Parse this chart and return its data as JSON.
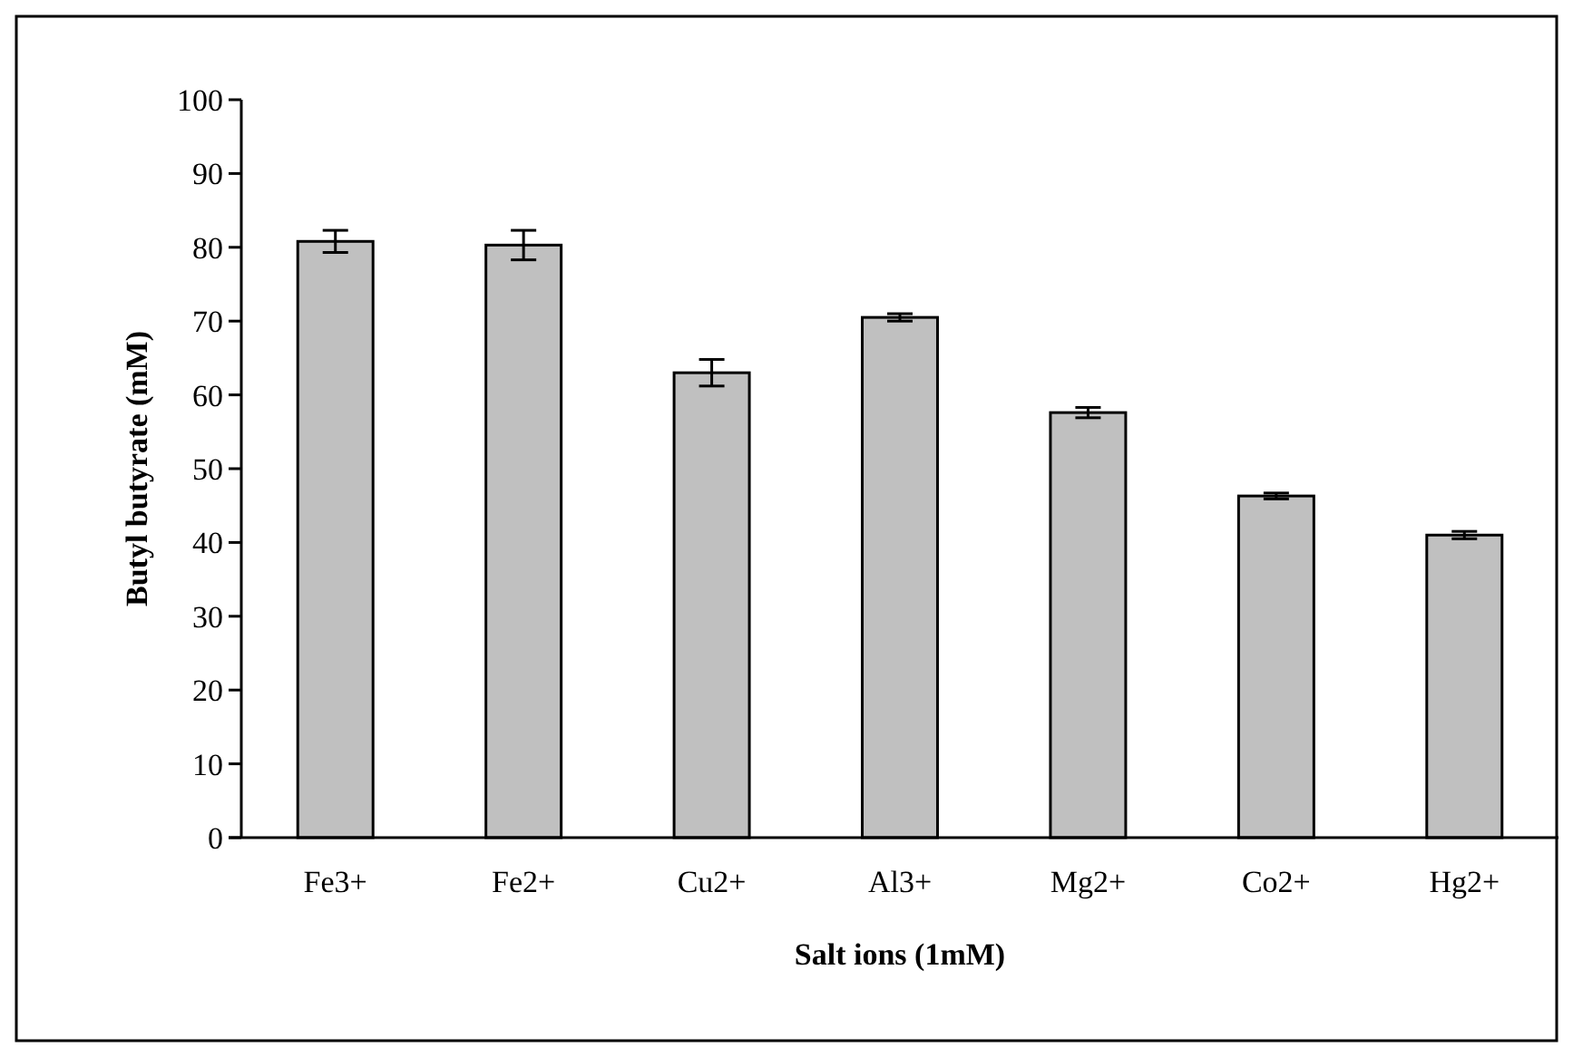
{
  "chart_data": {
    "type": "bar",
    "xlabel": "Salt ions (1mM)",
    "ylabel": "Butyl butyrate (mM)",
    "categories": [
      "Fe3+",
      "Fe2+",
      "Cu2+",
      "Al3+",
      "Mg2+",
      "Co2+",
      "Hg2+"
    ],
    "values": [
      80.8,
      80.3,
      63,
      70.5,
      57.6,
      46.3,
      41
    ],
    "errors": [
      1.5,
      2,
      1.8,
      0.5,
      0.7,
      0.4,
      0.5
    ],
    "color": "#c0c0c0",
    "ylim": [
      0,
      100
    ],
    "yticks": [
      0,
      10,
      20,
      30,
      40,
      50,
      60,
      70,
      80,
      90,
      100
    ],
    "grid": false
  }
}
